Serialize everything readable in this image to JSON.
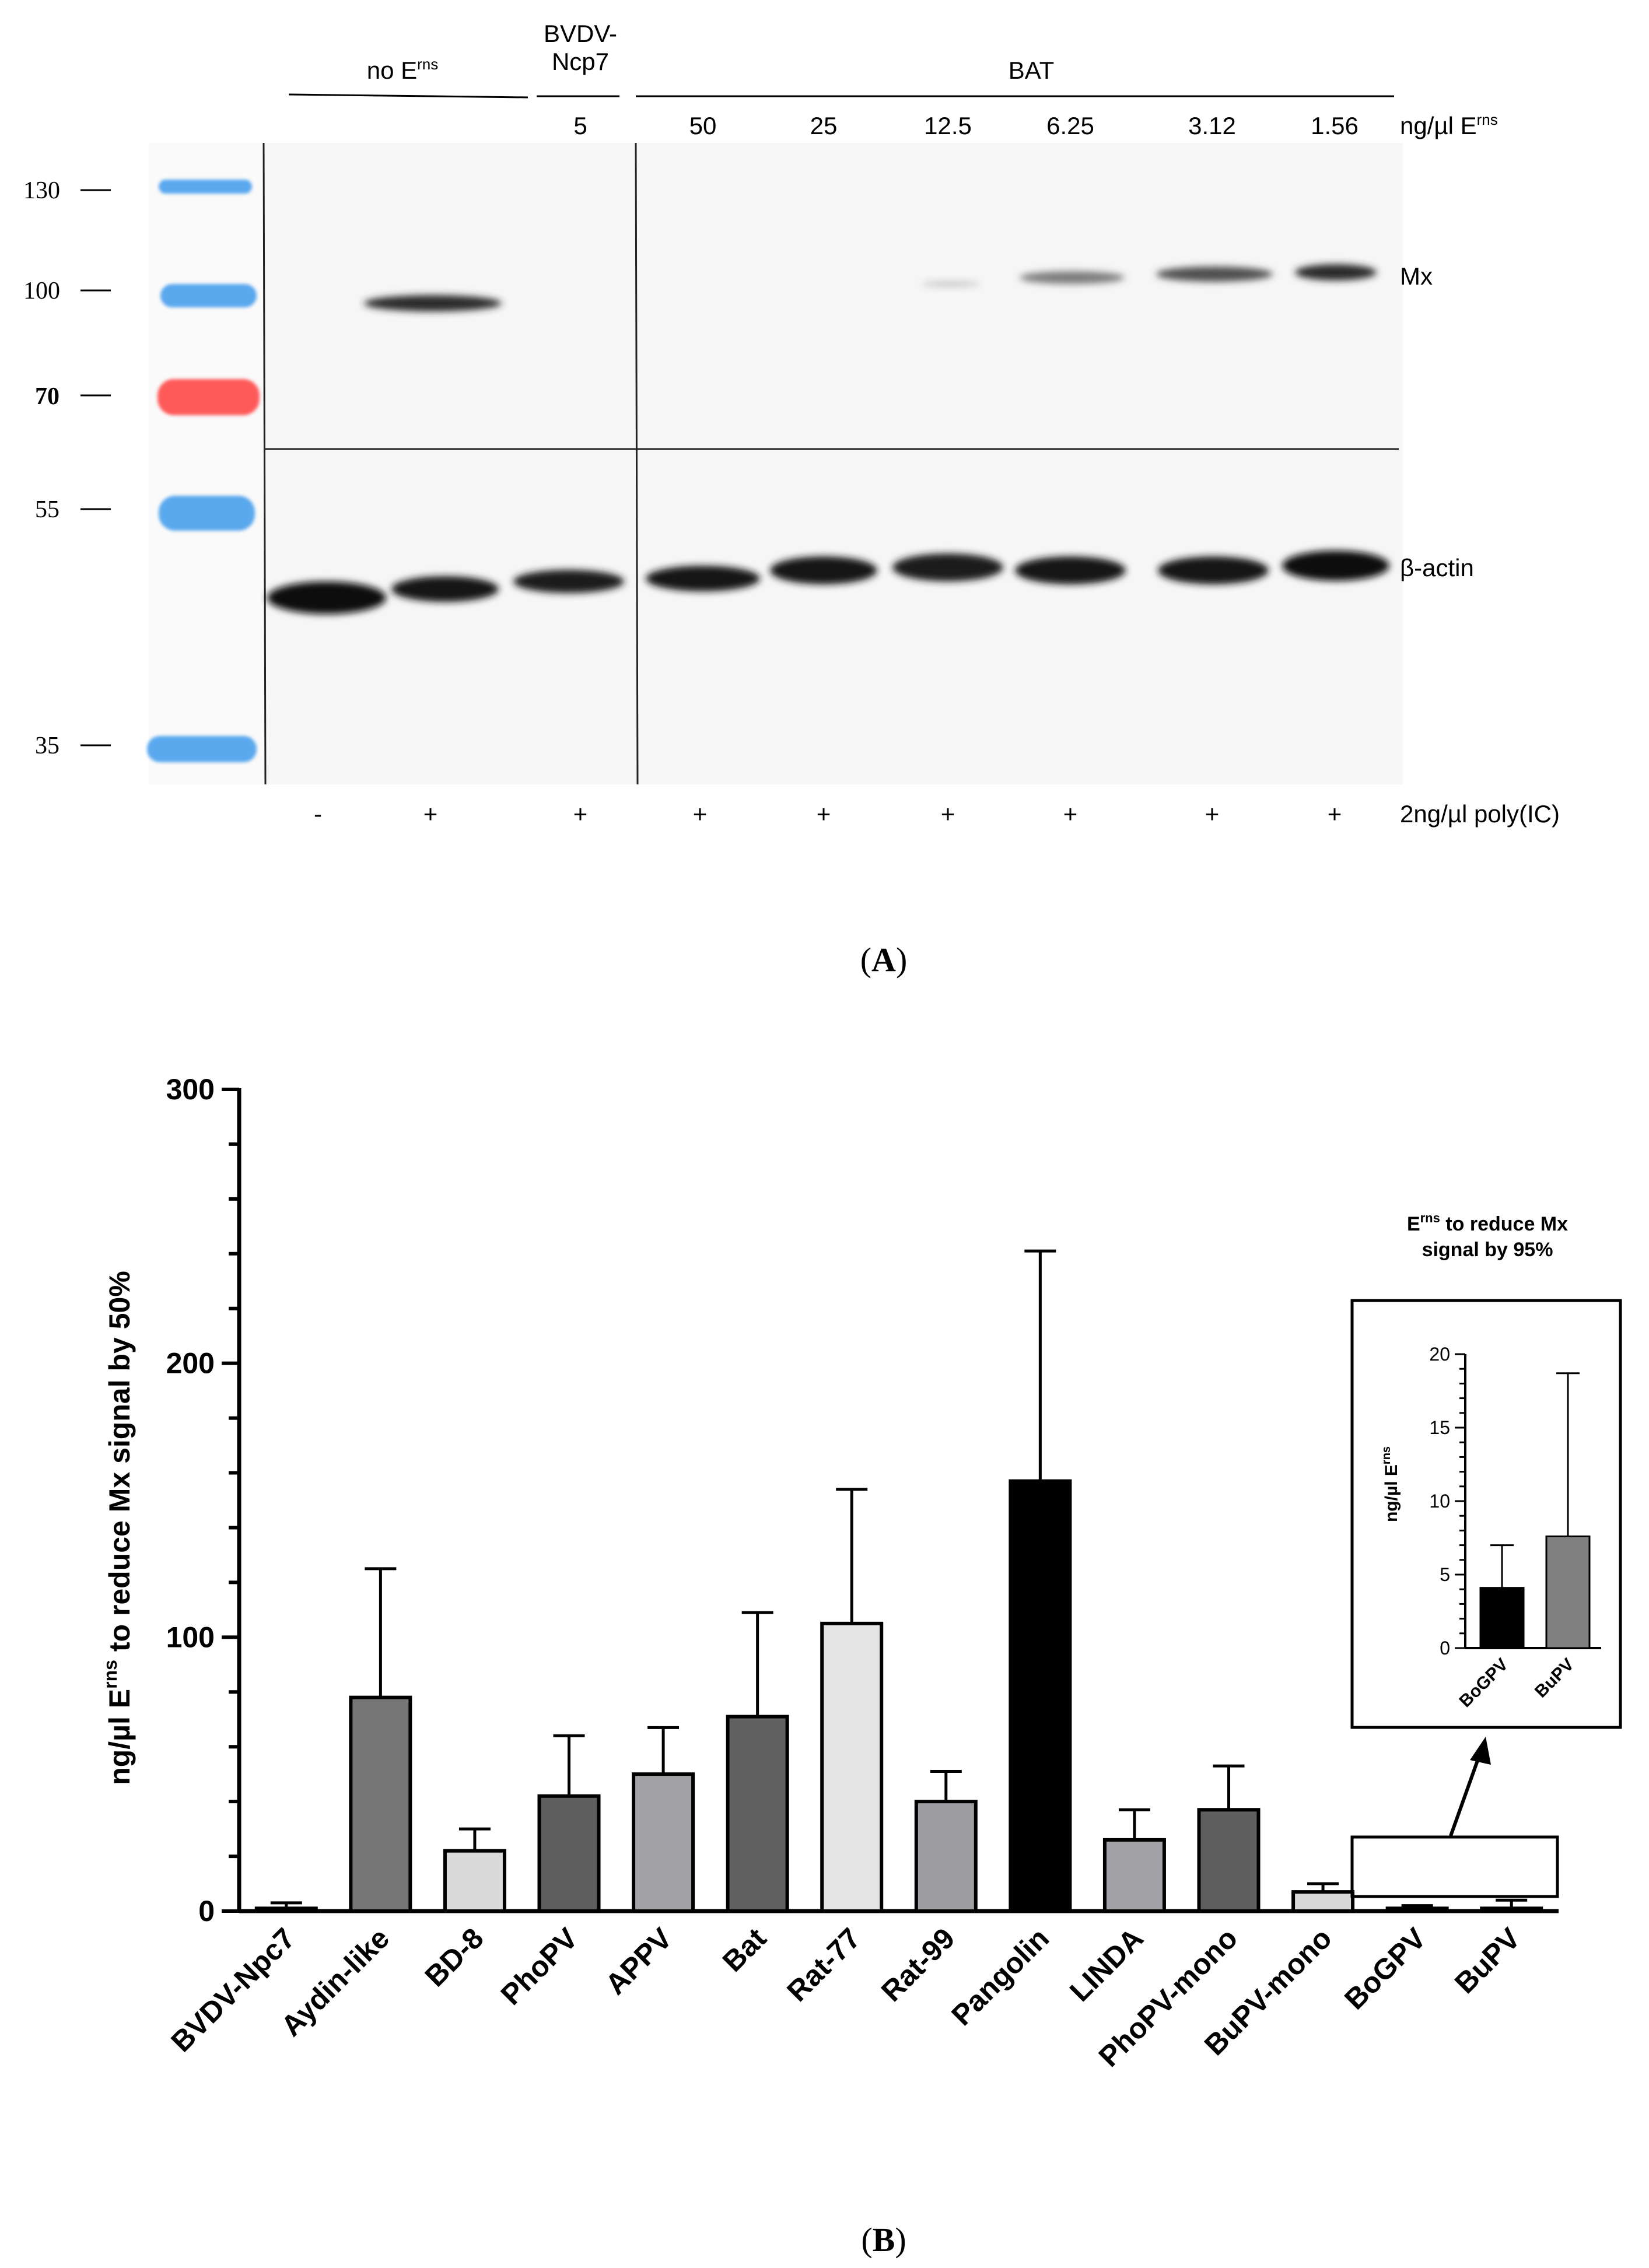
{
  "panel_a": {
    "panel_label": "A",
    "groups": [
      "no E",
      "BVDV-\nNcp7",
      "BAT"
    ],
    "group_sup": "rns",
    "concentration_title": "ng/µl E",
    "concentration_sup": "rns",
    "concentrations": [
      "5",
      "50",
      "25",
      "12.5",
      "6.25",
      "3.12",
      "1.56"
    ],
    "markers": [
      "130",
      "100",
      "70",
      "55",
      "35"
    ],
    "band_labels": [
      "Mx",
      "β-actin"
    ],
    "treatment_title": "2ng/µl poly(IC)",
    "treatments": [
      "-",
      "+",
      "+",
      "+",
      "+",
      "+",
      "+",
      "+",
      "+"
    ],
    "colors": {
      "ladder_blue": "#5aa8ee",
      "ladder_red": "#ff5a5a",
      "blot_bg": "#f6f6f6"
    }
  },
  "chart_data": [
    {
      "type": "bar",
      "panel_label": "B",
      "title": "",
      "xlabel": "",
      "ylabel": "ng/µl E",
      "ylabel_sup": "rns",
      "ylabel_rest": " to reduce Mx signal by 50%",
      "ylim": [
        0,
        300
      ],
      "yticks": [
        "0",
        "100",
        "200",
        "300"
      ],
      "categories": [
        "BVDV-Npc7",
        "Aydin-like",
        "BD-8",
        "PhoPV",
        "APPV",
        "Bat",
        "Rat-77",
        "Rat-99",
        "Pangolin",
        "LINDA",
        "PhoPV-mono",
        "BuPV-mono",
        "BoGPV",
        "BuPV"
      ],
      "values": [
        1,
        78,
        22,
        42,
        50,
        71,
        105,
        40,
        157,
        26,
        37,
        7,
        1,
        1
      ],
      "error_upper": [
        3,
        125,
        30,
        64,
        67,
        109,
        154,
        51,
        241,
        37,
        53,
        10,
        2,
        4
      ],
      "fills": [
        "#c8c8c8",
        "#767676",
        "#dadada",
        "#5e5e5e",
        "#a2a2a6",
        "#606060",
        "#e4e4e4",
        "#9e9ea2",
        "#000000",
        "#a2a2a6",
        "#5e5e5e",
        "#d8d8d8",
        "#c8c8c8",
        "#c8c8c8"
      ]
    },
    {
      "type": "bar",
      "title": "E",
      "title_sup": "rns",
      "title_rest": " to reduce Mx\nsignal by 95%",
      "ylabel": "ng/µl E",
      "ylabel_sup": "rns",
      "ylim": [
        0,
        20
      ],
      "yticks": [
        "0",
        "5",
        "10",
        "15",
        "20"
      ],
      "categories": [
        "BoGPV",
        "BuPV"
      ],
      "values": [
        4.1,
        7.6
      ],
      "error_upper": [
        7.0,
        18.7
      ],
      "fills": [
        "#000000",
        "#808080"
      ]
    }
  ]
}
